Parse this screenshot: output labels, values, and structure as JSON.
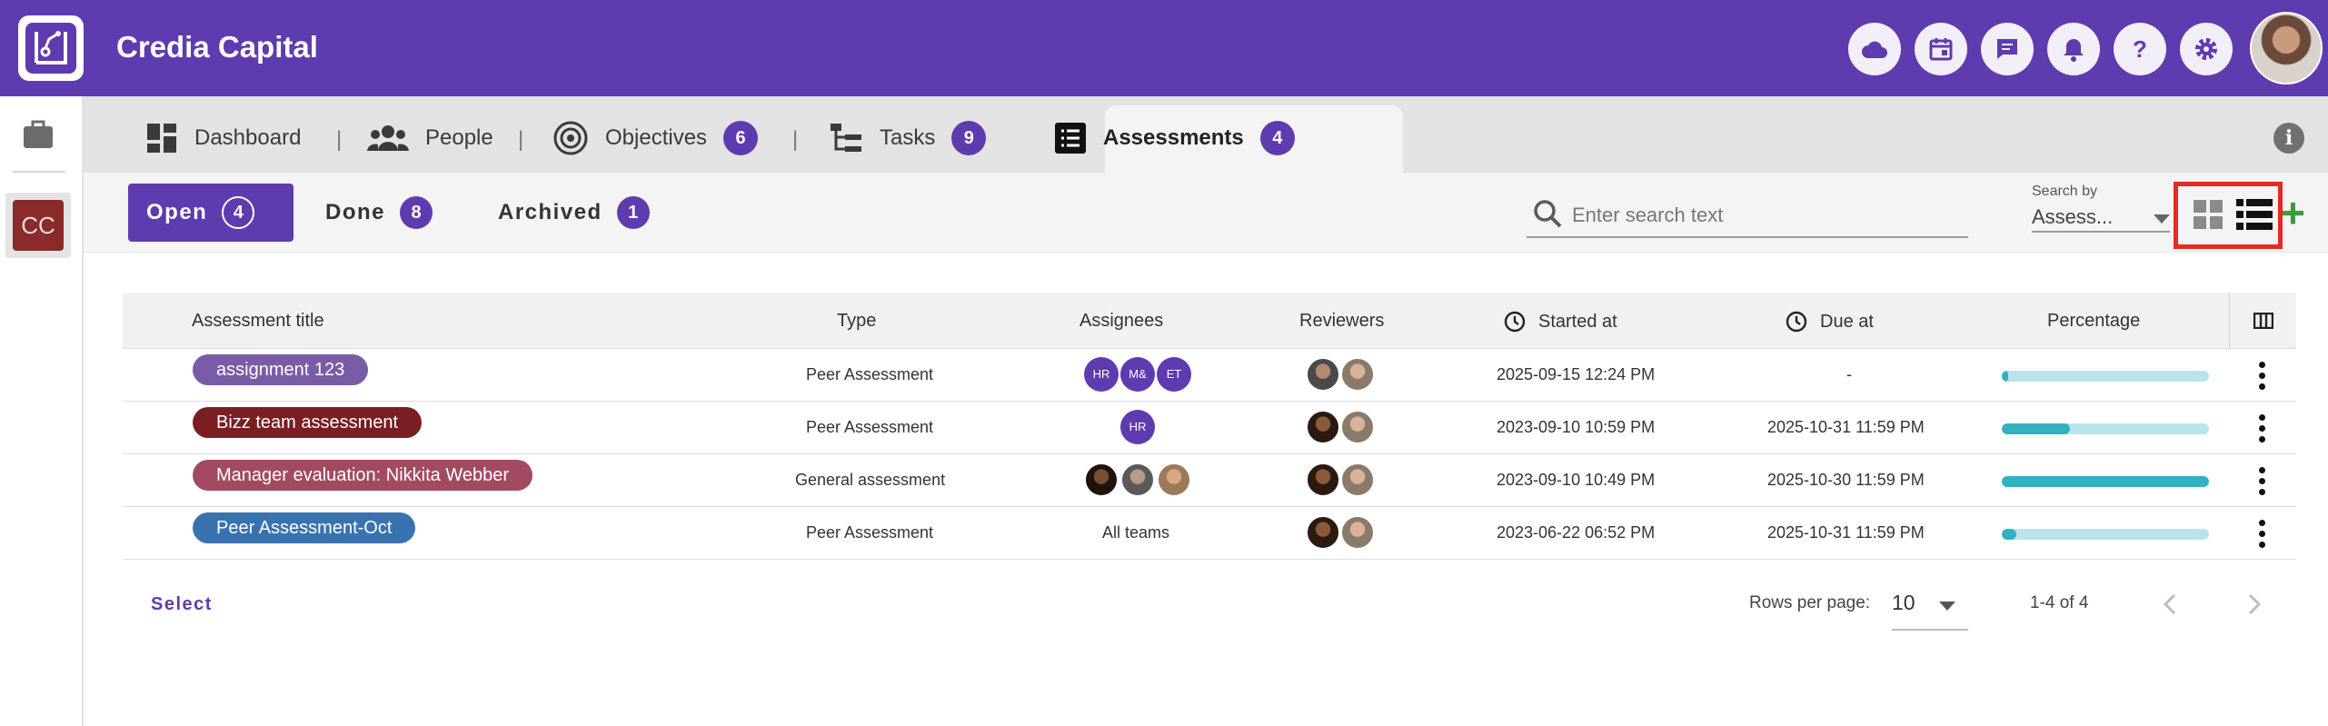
{
  "app": {
    "title": "Credia Capital"
  },
  "top_icons": [
    "cloud-icon",
    "calendar-icon",
    "chat-icon",
    "bell-icon",
    "help-icon",
    "settings-icon"
  ],
  "workspace": {
    "initials": "CC"
  },
  "tabs": [
    {
      "label": "Dashboard",
      "icon": "dashboard-icon",
      "count": ""
    },
    {
      "label": "People",
      "icon": "people-icon",
      "count": ""
    },
    {
      "label": "Objectives",
      "icon": "target-icon",
      "count": "6"
    },
    {
      "label": "Tasks",
      "icon": "tasks-icon",
      "count": "9"
    },
    {
      "label": "Assessments",
      "icon": "list-icon",
      "count": "4",
      "active": true
    }
  ],
  "filters": [
    {
      "label": "Open",
      "count": "4",
      "active": true
    },
    {
      "label": "Done",
      "count": "8"
    },
    {
      "label": "Archived",
      "count": "1"
    }
  ],
  "search": {
    "placeholder": "Enter search text",
    "by_label": "Search by",
    "by_value": "Assess..."
  },
  "table": {
    "headers": [
      "Assessment title",
      "Type",
      "Assignees",
      "Reviewers",
      "Started at",
      "Due at",
      "Percentage"
    ],
    "rows": [
      {
        "title": "assignment 123",
        "color": "#7a5ca6",
        "type": "Peer Assessment",
        "assignees": [
          "HR",
          "M&",
          "ET"
        ],
        "started": "2025-09-15 12:24 PM",
        "due": "-",
        "percentage": 0.03
      },
      {
        "title": "Bizz team assessment",
        "color": "#7a1e24",
        "type": "Peer Assessment",
        "assignees": [
          "HR"
        ],
        "started": "2023-09-10 10:59 PM",
        "due": "2025-10-31 11:59 PM",
        "percentage": 0.33
      },
      {
        "title": "Manager evaluation: Nikkita Webber",
        "color": "#a34a63",
        "type": "General assessment",
        "assignees": [],
        "started": "2023-09-10 10:49 PM",
        "due": "2025-10-30 11:59 PM",
        "percentage": 1.0
      },
      {
        "title": "Peer Assessment-Oct",
        "color": "#3a72b0",
        "type": "Peer Assessment",
        "assignees_text": "All teams",
        "started": "2023-06-22 06:52 PM",
        "due": "2025-10-31 11:59 PM",
        "percentage": 0.07
      }
    ]
  },
  "footer": {
    "select_label": "Select",
    "rows_per_page_label": "Rows per page:",
    "rows_per_page": "10",
    "range": "1-4 of 4"
  },
  "colors": {
    "brand": "#5e3bae",
    "progress_track": "#b9e5ea",
    "progress_fill": "#32b1c2",
    "highlight": "#e52a24",
    "add": "#3f9a3a"
  }
}
